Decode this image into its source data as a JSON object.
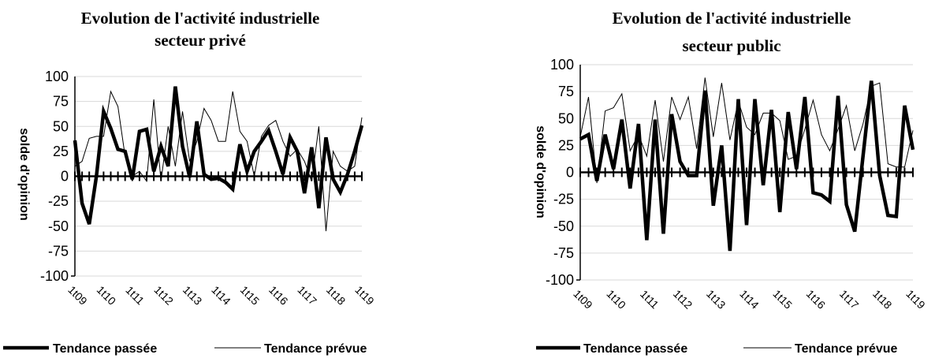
{
  "chart_data": [
    {
      "type": "line",
      "title": "Evolution de l'activité industrielle",
      "subtitle": "secteur privé",
      "ylabel": "solde d'opinion",
      "xlabel": "",
      "ylim": [
        -100,
        100
      ],
      "yticks": [
        100,
        75,
        50,
        25,
        0,
        -25,
        -50,
        -75,
        -100
      ],
      "xticks": [
        "1t09",
        "1t10",
        "1t11",
        "1t12",
        "1t13",
        "1t14",
        "1t15",
        "1t16",
        "1t17",
        "1t18",
        "1t19"
      ],
      "grid": true,
      "legend_position": "bottom",
      "series": [
        {
          "name": "Tendance passée",
          "style": "thick",
          "color": "#000000",
          "values": [
            36,
            -27,
            -48,
            0,
            65,
            48,
            27,
            25,
            -3,
            45,
            47,
            5,
            30,
            10,
            90,
            30,
            -1,
            55,
            2,
            -3,
            -2,
            -6,
            -13,
            32,
            5,
            25,
            35,
            46,
            25,
            2,
            39,
            25,
            -17,
            29,
            -32,
            39,
            -3,
            -16,
            2,
            25,
            51
          ]
        },
        {
          "name": "Tendance prévue",
          "style": "thin",
          "color": "#000000",
          "values": [
            10,
            15,
            38,
            40,
            40,
            85,
            70,
            20,
            0,
            5,
            -5,
            77,
            -5,
            50,
            10,
            65,
            15,
            35,
            68,
            56,
            35,
            35,
            85,
            45,
            35,
            0,
            40,
            51,
            56,
            35,
            20,
            27,
            15,
            -5,
            50,
            -55,
            25,
            10,
            5,
            10,
            59
          ]
        }
      ]
    },
    {
      "type": "line",
      "title": "Evolution de l'activité industrielle",
      "subtitle": "secteur public",
      "ylabel": "solde d'opinion",
      "xlabel": "",
      "ylim": [
        -100,
        100
      ],
      "yticks": [
        100,
        75,
        50,
        25,
        0,
        -25,
        -50,
        -75,
        -100
      ],
      "xticks": [
        "1t09",
        "1t10",
        "1t11",
        "1t12",
        "1t13",
        "1t14",
        "1t15",
        "1t16",
        "1t17",
        "1t18",
        "1t19"
      ],
      "grid": true,
      "legend_position": "bottom",
      "series": [
        {
          "name": "Tendance passée",
          "style": "thick",
          "color": "#000000",
          "values": [
            31,
            35,
            -8,
            35,
            3,
            49,
            -15,
            45,
            -63,
            49,
            -57,
            54,
            10,
            -3,
            -3,
            76,
            -31,
            25,
            -73,
            68,
            -49,
            68,
            -12,
            58,
            -37,
            56,
            3,
            70,
            -19,
            -21,
            -27,
            71,
            -30,
            -55,
            15,
            85,
            -3,
            -40,
            -41,
            62,
            21
          ]
        },
        {
          "name": "Tendance prévue",
          "style": "thin",
          "color": "#000000",
          "values": [
            33,
            70,
            -10,
            57,
            60,
            73,
            20,
            35,
            15,
            67,
            10,
            70,
            49,
            70,
            22,
            88,
            33,
            83,
            30,
            66,
            42,
            35,
            55,
            55,
            48,
            12,
            15,
            40,
            67,
            35,
            20,
            40,
            62,
            20,
            45,
            80,
            83,
            8,
            5,
            5,
            39
          ]
        }
      ]
    }
  ]
}
